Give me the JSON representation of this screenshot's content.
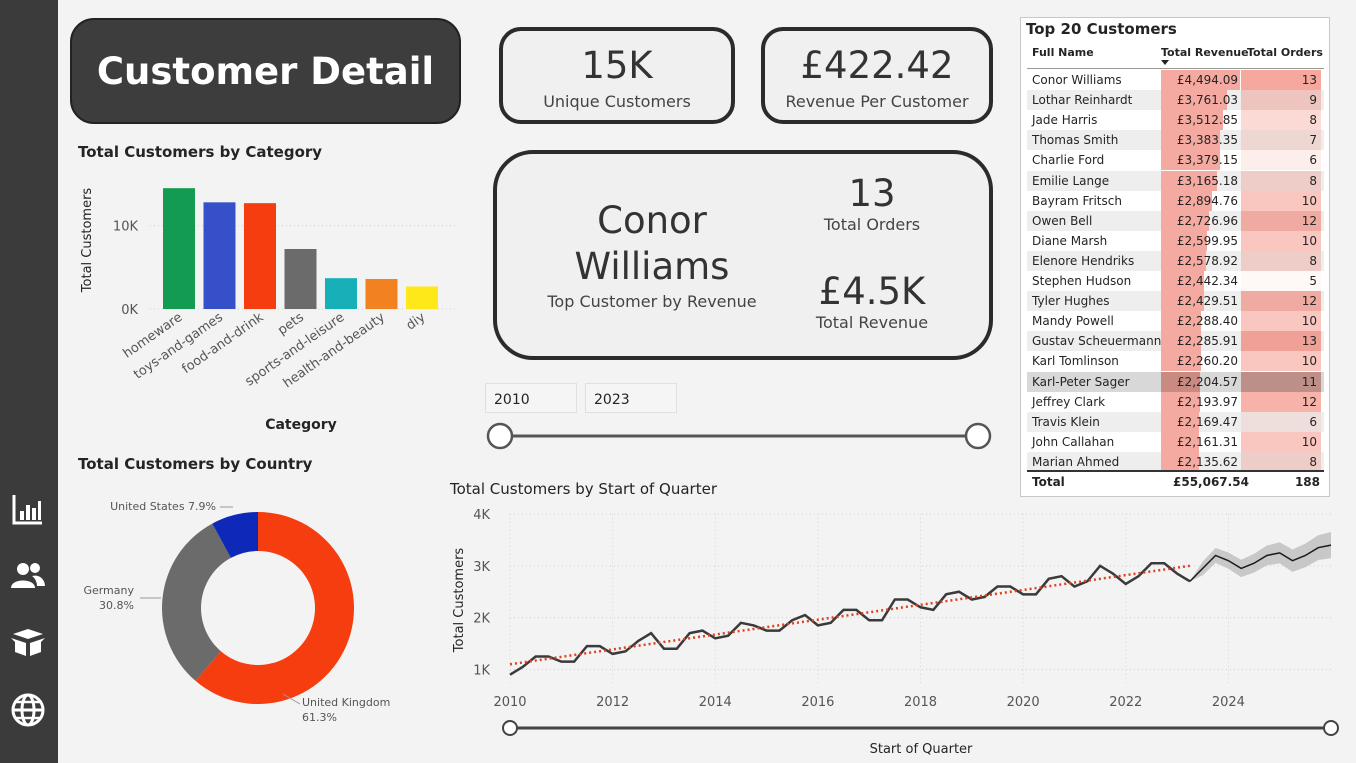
{
  "page": {
    "title": "Customer Detail"
  },
  "nav_icons": [
    "bar-chart-icon",
    "users-icon",
    "box-icon",
    "globe-icon"
  ],
  "kpis": {
    "unique_customers": {
      "value": "15K",
      "label": "Unique Customers"
    },
    "revenue_per_customer": {
      "value": "£422.42",
      "label": "Revenue Per Customer"
    }
  },
  "top_customer": {
    "name_line1": "Conor",
    "name_line2": "Williams",
    "label": "Top Customer by Revenue",
    "orders_value": "13",
    "orders_label": "Total Orders",
    "revenue_value": "£4.5K",
    "revenue_label": "Total Revenue"
  },
  "date_slider": {
    "start": "2010",
    "end": "2023"
  },
  "category_chart": {
    "title": "Total Customers by Category",
    "ylabel": "Total Customers",
    "xlabel": "Category",
    "tick_labels": [
      "0K",
      "10K"
    ],
    "chart_data": {
      "type": "bar",
      "categories": [
        "homeware",
        "toys-and-games",
        "food-and-drink",
        "pets",
        "sports-and-leisure",
        "health-and-beauty",
        "diy"
      ],
      "values": [
        14500,
        12800,
        12700,
        7200,
        3700,
        3600,
        2700
      ],
      "colors": [
        "#149b52",
        "#3550c8",
        "#f53d10",
        "#6b6b6b",
        "#17b0b8",
        "#f2821f",
        "#ffe81a"
      ],
      "ylim": [
        0,
        15000
      ]
    }
  },
  "country_chart": {
    "title": "Total Customers by Country",
    "chart_data": {
      "type": "pie",
      "labels": [
        "United Kingdom",
        "Germany",
        "United States"
      ],
      "values": [
        61.3,
        30.8,
        7.9
      ],
      "label_texts": [
        "United Kingdom\n61.3%",
        "Germany\n30.8%",
        "United States 7.9%"
      ],
      "colors": [
        "#f53d10",
        "#6b6b6b",
        "#0e28b8"
      ]
    }
  },
  "quarter_chart": {
    "title": "Total Customers by Start of Quarter",
    "ylabel": "Total Customers",
    "xlabel": "Start of Quarter",
    "y_ticks": [
      "1K",
      "2K",
      "3K",
      "4K"
    ],
    "x_ticks": [
      "2010",
      "2012",
      "2014",
      "2016",
      "2018",
      "2020",
      "2022",
      "2024"
    ],
    "chart_data": {
      "type": "line",
      "x_start": 2010,
      "x_step": 0.25,
      "ylim": [
        700,
        4000
      ],
      "xlim": [
        2010,
        2026
      ],
      "actual": [
        900,
        1050,
        1250,
        1250,
        1150,
        1150,
        1450,
        1450,
        1300,
        1350,
        1550,
        1700,
        1400,
        1400,
        1700,
        1750,
        1600,
        1650,
        1900,
        1850,
        1750,
        1750,
        1950,
        2050,
        1850,
        1900,
        2150,
        2150,
        1950,
        1950,
        2350,
        2350,
        2200,
        2150,
        2450,
        2500,
        2350,
        2400,
        2600,
        2600,
        2450,
        2450,
        2750,
        2800,
        2600,
        2700,
        3000,
        2850,
        2650,
        2800,
        3050,
        3050,
        2850,
        2700
      ],
      "forecast": [
        2950,
        3200,
        3100,
        2950,
        3050,
        3200,
        3250,
        3100,
        3200,
        3350,
        3400
      ],
      "trend": {
        "start": [
          2010,
          1100
        ],
        "end": [
          2023.25,
          3000
        ]
      },
      "colors": {
        "actual": "#3a3a3a",
        "trend": "#e0401b",
        "forecast_band": "#c0c0c0"
      }
    }
  },
  "table": {
    "title": "Top 20 Customers",
    "headers": [
      "Full Name",
      "Total Revenue",
      "Total Orders"
    ],
    "rows": [
      {
        "name": "Conor Williams",
        "revenue": "£4,494.09",
        "orders": "13",
        "rev_num": 4494.09,
        "ord_num": 13
      },
      {
        "name": "Lothar Reinhardt",
        "revenue": "£3,761.03",
        "orders": "9",
        "rev_num": 3761.03,
        "ord_num": 9
      },
      {
        "name": "Jade Harris",
        "revenue": "£3,512.85",
        "orders": "8",
        "rev_num": 3512.85,
        "ord_num": 8
      },
      {
        "name": "Thomas Smith",
        "revenue": "£3,383.35",
        "orders": "7",
        "rev_num": 3383.35,
        "ord_num": 7
      },
      {
        "name": "Charlie Ford",
        "revenue": "£3,379.15",
        "orders": "6",
        "rev_num": 3379.15,
        "ord_num": 6
      },
      {
        "name": "Emilie Lange",
        "revenue": "£3,165.18",
        "orders": "8",
        "rev_num": 3165.18,
        "ord_num": 8
      },
      {
        "name": "Bayram Fritsch",
        "revenue": "£2,894.76",
        "orders": "10",
        "rev_num": 2894.76,
        "ord_num": 10
      },
      {
        "name": "Owen Bell",
        "revenue": "£2,726.96",
        "orders": "12",
        "rev_num": 2726.96,
        "ord_num": 12
      },
      {
        "name": "Diane Marsh",
        "revenue": "£2,599.95",
        "orders": "10",
        "rev_num": 2599.95,
        "ord_num": 10
      },
      {
        "name": "Elenore Hendriks",
        "revenue": "£2,578.92",
        "orders": "8",
        "rev_num": 2578.92,
        "ord_num": 8
      },
      {
        "name": "Stephen Hudson",
        "revenue": "£2,442.34",
        "orders": "5",
        "rev_num": 2442.34,
        "ord_num": 5
      },
      {
        "name": "Tyler Hughes",
        "revenue": "£2,429.51",
        "orders": "12",
        "rev_num": 2429.51,
        "ord_num": 12
      },
      {
        "name": "Mandy Powell",
        "revenue": "£2,288.40",
        "orders": "10",
        "rev_num": 2288.4,
        "ord_num": 10
      },
      {
        "name": "Gustav Scheuermann",
        "revenue": "£2,285.91",
        "orders": "13",
        "rev_num": 2285.91,
        "ord_num": 13
      },
      {
        "name": "Karl Tomlinson",
        "revenue": "£2,260.20",
        "orders": "10",
        "rev_num": 2260.2,
        "ord_num": 10
      },
      {
        "name": "Karl-Peter Sager",
        "revenue": "£2,204.57",
        "orders": "11",
        "rev_num": 2204.57,
        "ord_num": 11
      },
      {
        "name": "Jeffrey Clark",
        "revenue": "£2,193.97",
        "orders": "12",
        "rev_num": 2193.97,
        "ord_num": 12
      },
      {
        "name": "Travis Klein",
        "revenue": "£2,169.47",
        "orders": "6",
        "rev_num": 2169.47,
        "ord_num": 6
      },
      {
        "name": "John Callahan",
        "revenue": "£2,161.31",
        "orders": "10",
        "rev_num": 2161.31,
        "ord_num": 10
      },
      {
        "name": "Marian Ahmed",
        "revenue": "£2,135.62",
        "orders": "8",
        "rev_num": 2135.62,
        "ord_num": 8
      }
    ],
    "total": {
      "label": "Total",
      "revenue": "£55,067.54",
      "orders": "188"
    },
    "highlighted_row": 15
  }
}
